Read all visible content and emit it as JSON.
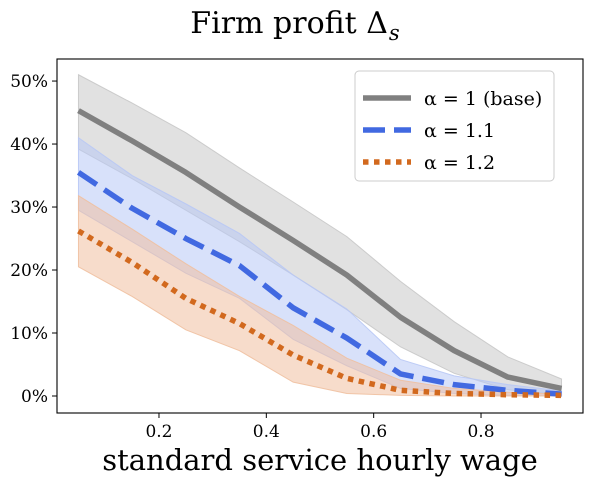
{
  "chart_data": {
    "type": "line",
    "title": "Firm profit Δ",
    "title_subscript": "s",
    "xlabel": "standard service hourly wage",
    "ylabel": "",
    "xlim": [
      0.01,
      0.99
    ],
    "ylim": [
      -0.027,
      0.535
    ],
    "x_ticks": [
      0.2,
      0.4,
      0.6,
      0.8
    ],
    "x_tick_labels": [
      "0.2",
      "0.4",
      "0.6",
      "0.8"
    ],
    "y_ticks": [
      0,
      0.1,
      0.2,
      0.3,
      0.4,
      0.5
    ],
    "y_tick_labels": [
      "0%",
      "10%",
      "20%",
      "30%",
      "40%",
      "50%"
    ],
    "grid": false,
    "legend_position": "top-right",
    "x": [
      0.05,
      0.15,
      0.25,
      0.35,
      0.45,
      0.55,
      0.65,
      0.75,
      0.85,
      0.95
    ],
    "series": [
      {
        "name": "α = 1 (base)",
        "line_style": "solid",
        "color": "#808080",
        "band_color": "#c8c8c8",
        "values": [
          0.453,
          0.405,
          0.355,
          0.3,
          0.247,
          0.192,
          0.125,
          0.072,
          0.03,
          0.012
        ],
        "lower": [
          0.392,
          0.345,
          0.295,
          0.245,
          0.192,
          0.137,
          0.078,
          0.036,
          0.01,
          0.002
        ],
        "upper": [
          0.51,
          0.465,
          0.418,
          0.362,
          0.308,
          0.253,
          0.182,
          0.118,
          0.062,
          0.027
        ]
      },
      {
        "name": "α = 1.1",
        "line_style": "dashed",
        "color": "#4169e1",
        "band_color": "#b8c8f5",
        "values": [
          0.355,
          0.298,
          0.25,
          0.207,
          0.14,
          0.092,
          0.035,
          0.018,
          0.009,
          0.003
        ],
        "lower": [
          0.295,
          0.245,
          0.195,
          0.155,
          0.09,
          0.048,
          0.012,
          0.004,
          0.001,
          0.0
        ],
        "upper": [
          0.41,
          0.35,
          0.305,
          0.258,
          0.192,
          0.138,
          0.058,
          0.032,
          0.018,
          0.008
        ]
      },
      {
        "name": "α = 1.2",
        "line_style": "dotted",
        "color": "#d2691e",
        "band_color": "#f0c0a0",
        "values": [
          0.262,
          0.212,
          0.155,
          0.115,
          0.065,
          0.028,
          0.009,
          0.004,
          0.002,
          0.001
        ],
        "lower": [
          0.205,
          0.158,
          0.105,
          0.072,
          0.022,
          0.004,
          0.001,
          0.0,
          0.0,
          0.0
        ],
        "upper": [
          0.318,
          0.265,
          0.21,
          0.158,
          0.112,
          0.06,
          0.025,
          0.012,
          0.006,
          0.003
        ]
      }
    ]
  }
}
